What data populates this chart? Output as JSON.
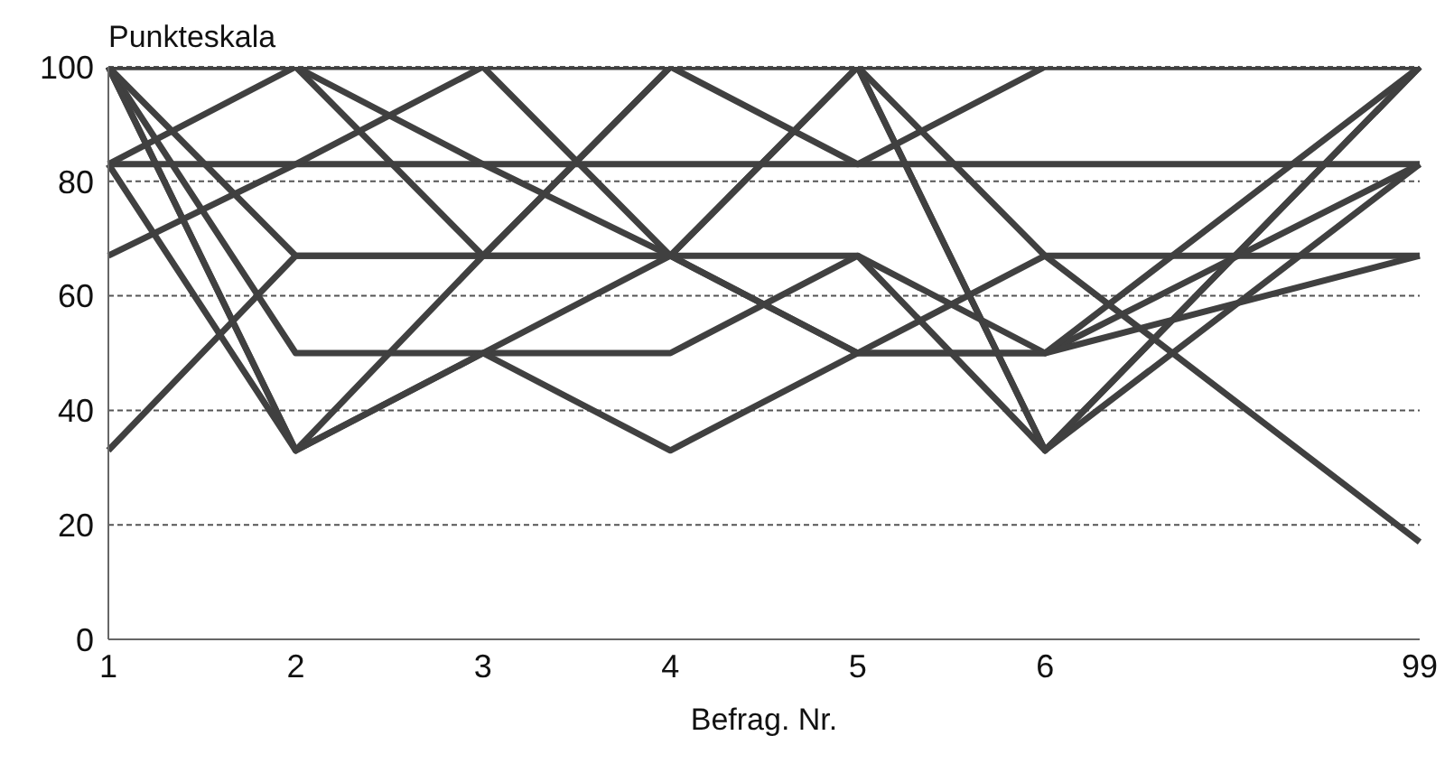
{
  "chart_data": {
    "type": "line",
    "xlabel": "Befrag. Nr.",
    "ylabel": "Punkteskala",
    "categories": [
      "1",
      "2",
      "3",
      "4",
      "5",
      "6",
      null,
      "99"
    ],
    "ylim": [
      0,
      100
    ],
    "yticks": [
      0,
      20,
      40,
      60,
      80,
      100
    ],
    "grid": "y",
    "marker": "none",
    "line_style": "solid",
    "series": [
      {
        "color": "#404040",
        "values": [
          100,
          100,
          100,
          100,
          100,
          100,
          null,
          100
        ]
      },
      {
        "color": "#404040",
        "values": [
          83,
          83,
          83,
          83,
          83,
          100,
          null,
          100
        ]
      },
      {
        "color": "#404040",
        "values": [
          67,
          83,
          100,
          67,
          50,
          50,
          null,
          83
        ]
      },
      {
        "color": "#404040",
        "values": [
          83,
          100,
          67,
          100,
          83,
          83,
          null,
          83
        ]
      },
      {
        "color": "#404040",
        "values": [
          33,
          67,
          67,
          67,
          67,
          33,
          null,
          100
        ]
      },
      {
        "color": "#404040",
        "values": [
          100,
          50,
          50,
          50,
          67,
          50,
          null,
          67
        ]
      },
      {
        "color": "#404040",
        "values": [
          100,
          33,
          67,
          100,
          100,
          67,
          null,
          17
        ]
      },
      {
        "color": "#404040",
        "values": [
          100,
          33,
          50,
          33,
          50,
          67,
          null,
          67
        ]
      },
      {
        "color": "#404040",
        "values": [
          83,
          33,
          50,
          67,
          100,
          33,
          null,
          83
        ]
      },
      {
        "color": "#404040",
        "values": [
          100,
          100,
          83,
          67,
          50,
          50,
          null,
          100
        ]
      },
      {
        "color": "#404040",
        "values": [
          100,
          67,
          67,
          67,
          100,
          33,
          null,
          100
        ]
      }
    ]
  }
}
